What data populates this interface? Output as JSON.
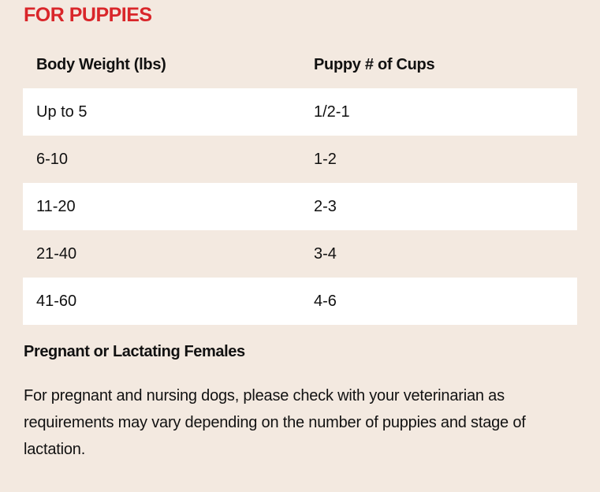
{
  "section": {
    "title": "FOR PUPPIES",
    "accent_color": "#d9262a",
    "background_color": "#f3e9e0"
  },
  "table": {
    "headers": [
      "Body Weight (lbs)",
      "Puppy # of Cups"
    ],
    "rows": [
      [
        "Up to 5",
        "1/2-1"
      ],
      [
        "6-10",
        "1-2"
      ],
      [
        "11-20",
        "2-3"
      ],
      [
        "21-40",
        "3-4"
      ],
      [
        "41-60",
        "4-6"
      ]
    ]
  },
  "note": {
    "heading": "Pregnant or Lactating Females",
    "body": "For pregnant and nursing dogs, please check with your veterinarian as requirements may vary depending on the number of puppies and stage of lactation."
  }
}
